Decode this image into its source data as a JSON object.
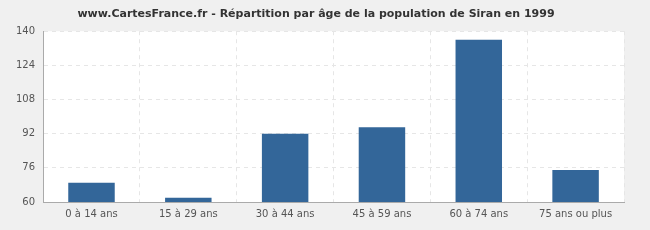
{
  "chart_data": {
    "type": "bar",
    "title": "www.CartesFrance.fr - Répartition par âge de la population de Siran en 1999",
    "categories": [
      "0 à 14 ans",
      "15 à 29 ans",
      "30 à 44 ans",
      "45 à 59 ans",
      "60 à 74 ans",
      "75 ans ou plus"
    ],
    "values": [
      69,
      62,
      92,
      95,
      136,
      75
    ],
    "color": "#336699",
    "ylim": [
      60,
      140
    ],
    "yticks": [
      60,
      76,
      92,
      108,
      124,
      140
    ],
    "grid": true
  }
}
